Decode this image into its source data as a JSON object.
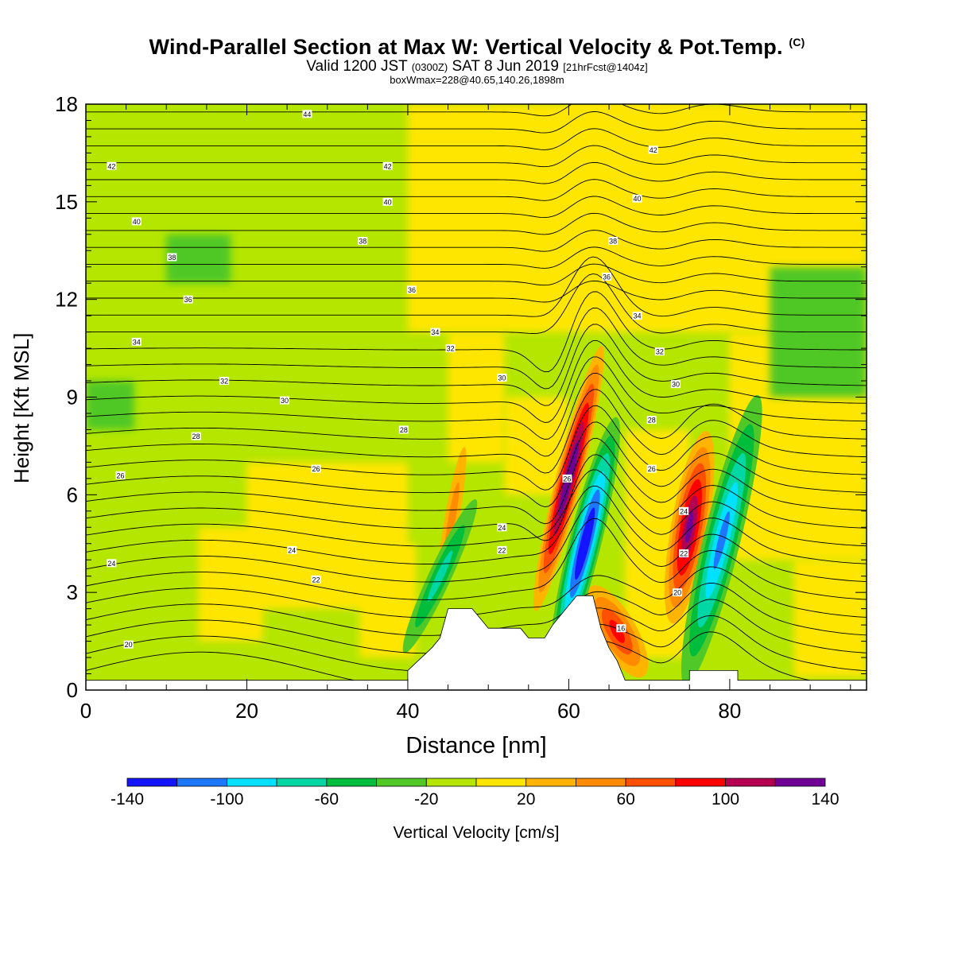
{
  "title": "Wind-Parallel Section at Max W: Vertical Velocity & Pot.Temp.",
  "title_mark": "(C)",
  "subtitle": {
    "main1": "Valid 1200 JST ",
    "utc": "(0300Z)",
    "main2": " SAT 8 Jun 2019 ",
    "fcst": "[21hrFcst@1404z]"
  },
  "subtitle2": "boxWmax=228@40.65,140.26,1898m",
  "chart_data": {
    "type": "heatmap",
    "xlabel": "Distance [nm]",
    "ylabel": "Height [Kft MSL]",
    "xlim": [
      0,
      97
    ],
    "ylim": [
      0,
      18
    ],
    "x_ticks": [
      "0",
      "20",
      "40",
      "60",
      "80"
    ],
    "x_tick_values": [
      0,
      20,
      40,
      60,
      80
    ],
    "y_ticks": [
      "0",
      "3",
      "6",
      "9",
      "12",
      "15",
      "18"
    ],
    "y_tick_values": [
      0,
      3,
      6,
      9,
      12,
      15,
      18
    ],
    "background_field": "near-zero vertical velocity (-20 to 20 cm/s)",
    "updrafts_cm_s": [
      {
        "x": 60,
        "y": 6.5,
        "peak": 140
      },
      {
        "x": 75,
        "y": 5.0,
        "peak": 110
      },
      {
        "x": 66,
        "y": 1.8,
        "peak": 80
      },
      {
        "x": 45.5,
        "y": 5.3,
        "peak": 40
      }
    ],
    "downdrafts_cm_s": [
      {
        "x": 62,
        "y": 4.5,
        "peak": -140
      },
      {
        "x": 79,
        "y": 4.6,
        "peak": -100
      },
      {
        "x": 44,
        "y": 3.5,
        "peak": -60
      }
    ],
    "terrain_kft": {
      "x": [
        0,
        40,
        40,
        41.5,
        43,
        44,
        45,
        48,
        49,
        50,
        51,
        54,
        55,
        57,
        58,
        59,
        61,
        63,
        64,
        65,
        66,
        67,
        75,
        75,
        81,
        81,
        97
      ],
      "y": [
        0.3,
        0.3,
        0.6,
        0.95,
        1.3,
        1.6,
        2.5,
        2.5,
        2.2,
        1.9,
        1.9,
        1.9,
        1.6,
        1.6,
        2.0,
        2.3,
        2.9,
        2.9,
        1.9,
        1.3,
        0.9,
        0.3,
        0.3,
        0.6,
        0.6,
        0.3,
        0.3
      ]
    },
    "theta_contour_labels": [
      {
        "text": "44",
        "x": 27.5,
        "y": 17.7
      },
      {
        "text": "42",
        "x": 3.2,
        "y": 16.1
      },
      {
        "text": "42",
        "x": 37.5,
        "y": 16.1
      },
      {
        "text": "42",
        "x": 70.5,
        "y": 16.6
      },
      {
        "text": "40",
        "x": 6.3,
        "y": 14.4
      },
      {
        "text": "40",
        "x": 37.5,
        "y": 15.0
      },
      {
        "text": "40",
        "x": 68.5,
        "y": 15.1
      },
      {
        "text": "38",
        "x": 10.7,
        "y": 13.3
      },
      {
        "text": "38",
        "x": 34.4,
        "y": 13.8
      },
      {
        "text": "38",
        "x": 65.5,
        "y": 13.8
      },
      {
        "text": "36",
        "x": 12.7,
        "y": 12.0
      },
      {
        "text": "36",
        "x": 40.5,
        "y": 12.3
      },
      {
        "text": "36",
        "x": 64.7,
        "y": 12.7
      },
      {
        "text": "34",
        "x": 6.3,
        "y": 10.7
      },
      {
        "text": "34",
        "x": 43.4,
        "y": 11.0
      },
      {
        "text": "34",
        "x": 68.5,
        "y": 11.5
      },
      {
        "text": "32",
        "x": 17.2,
        "y": 9.5
      },
      {
        "text": "32",
        "x": 45.3,
        "y": 10.5
      },
      {
        "text": "32",
        "x": 71.3,
        "y": 10.4
      },
      {
        "text": "30",
        "x": 24.7,
        "y": 8.9
      },
      {
        "text": "30",
        "x": 51.7,
        "y": 9.6
      },
      {
        "text": "30",
        "x": 73.3,
        "y": 9.4
      },
      {
        "text": "28",
        "x": 13.7,
        "y": 7.8
      },
      {
        "text": "28",
        "x": 39.5,
        "y": 8.0
      },
      {
        "text": "28",
        "x": 70.3,
        "y": 8.3
      },
      {
        "text": "26",
        "x": 4.3,
        "y": 6.6
      },
      {
        "text": "26",
        "x": 28.6,
        "y": 6.8
      },
      {
        "text": "26",
        "x": 70.3,
        "y": 6.8
      },
      {
        "text": "26",
        "x": 59.8,
        "y": 6.5
      },
      {
        "text": "24",
        "x": 3.2,
        "y": 3.9
      },
      {
        "text": "24",
        "x": 25.6,
        "y": 4.3
      },
      {
        "text": "24",
        "x": 51.7,
        "y": 5.0
      },
      {
        "text": "24",
        "x": 74.3,
        "y": 5.5
      },
      {
        "text": "22",
        "x": 28.6,
        "y": 3.4
      },
      {
        "text": "22",
        "x": 51.7,
        "y": 4.3
      },
      {
        "text": "22",
        "x": 74.3,
        "y": 4.2
      },
      {
        "text": "20",
        "x": 5.3,
        "y": 1.4
      },
      {
        "text": "20",
        "x": 73.5,
        "y": 3.0
      },
      {
        "text": "16",
        "x": 66.5,
        "y": 1.9
      }
    ]
  },
  "colorbar": {
    "label": "Vertical Velocity [cm/s]",
    "colors": [
      "#1414ff",
      "#1e78ff",
      "#00e1ff",
      "#00d7a5",
      "#00bd3c",
      "#50c828",
      "#b4e600",
      "#ffe600",
      "#ffb400",
      "#ff8c00",
      "#ff5000",
      "#ff0000",
      "#b40050",
      "#6e0096"
    ],
    "tick_labels": [
      "-140",
      "-100",
      "-60",
      "-20",
      "20",
      "60",
      "100",
      "140"
    ]
  }
}
